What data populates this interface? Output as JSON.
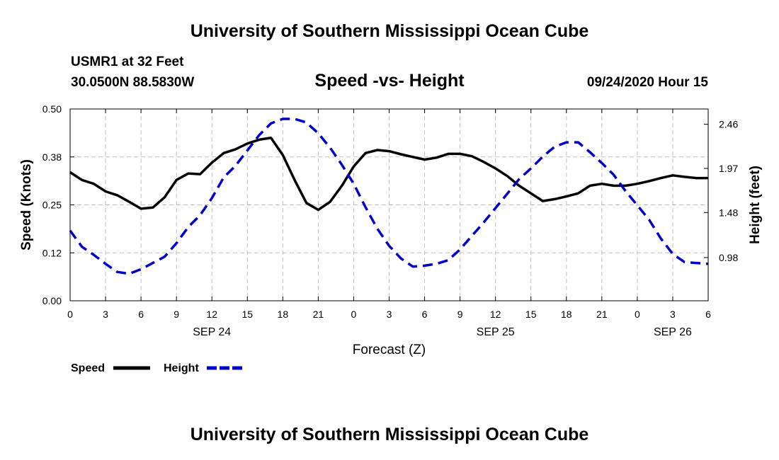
{
  "header": {
    "title": "University of Southern Mississippi Ocean Cube",
    "station": "USMR1 at 32 Feet",
    "coords": "30.0500N 88.5830W",
    "date": "09/24/2020 Hour 15"
  },
  "footer": {
    "title": "University of Southern Mississippi Ocean Cube"
  },
  "chart_data": {
    "type": "line",
    "title": "Speed -vs- Height",
    "xlabel": "Forecast (Z)",
    "ylabel": "Speed (Knots)",
    "y2label": "Height (feet)",
    "xlim": [
      0,
      54
    ],
    "ylim": [
      0,
      0.5
    ],
    "y2lim": [
      0.5,
      2.63
    ],
    "grid": true,
    "x_ticks": [
      0,
      3,
      6,
      9,
      12,
      15,
      18,
      21,
      24,
      27,
      30,
      33,
      36,
      39,
      42,
      45,
      48,
      51,
      54
    ],
    "x_tick_labels": [
      "0",
      "3",
      "6",
      "9",
      "12",
      "15",
      "18",
      "21",
      "0",
      "3",
      "6",
      "9",
      "12",
      "15",
      "18",
      "21",
      "0",
      "3",
      "6"
    ],
    "date_labels": [
      {
        "x": 12,
        "label": "SEP 24"
      },
      {
        "x": 36,
        "label": "SEP 25"
      },
      {
        "x": 51,
        "label": "SEP 26"
      }
    ],
    "y_ticks": [
      0,
      0.125,
      0.25,
      0.375,
      0.5
    ],
    "y_tick_labels": [
      "0.00",
      "0.12",
      "0.25",
      "0.38",
      "0.50"
    ],
    "y2_ticks": [
      0.98,
      1.48,
      1.97,
      2.46
    ],
    "y2_tick_labels": [
      "0.98",
      "1.48",
      "1.97",
      "2.46"
    ],
    "legend": {
      "position": "bottom-left",
      "items": [
        {
          "label": "Speed",
          "color": "#000000",
          "style": "solid"
        },
        {
          "label": "Height",
          "color": "#0000cc",
          "style": "dashed"
        }
      ]
    },
    "series": [
      {
        "name": "Speed",
        "axis": "left",
        "color": "#000000",
        "style": "solid",
        "x": [
          0,
          1,
          2,
          3,
          4,
          5,
          6,
          7,
          8,
          9,
          10,
          11,
          12,
          13,
          14,
          15,
          16,
          17,
          18,
          19,
          20,
          21,
          22,
          23,
          24,
          25,
          26,
          27,
          28,
          29,
          30,
          31,
          32,
          33,
          34,
          35,
          36,
          37,
          38,
          39,
          40,
          41,
          42,
          43,
          44,
          45,
          46,
          47,
          48,
          49,
          50,
          51,
          52,
          53,
          54
        ],
        "values": [
          0.335,
          0.315,
          0.305,
          0.285,
          0.275,
          0.258,
          0.24,
          0.243,
          0.27,
          0.315,
          0.332,
          0.33,
          0.36,
          0.385,
          0.395,
          0.41,
          0.42,
          0.425,
          0.38,
          0.315,
          0.255,
          0.237,
          0.258,
          0.3,
          0.35,
          0.385,
          0.393,
          0.39,
          0.382,
          0.375,
          0.368,
          0.373,
          0.383,
          0.383,
          0.377,
          0.362,
          0.345,
          0.325,
          0.3,
          0.28,
          0.26,
          0.265,
          0.272,
          0.28,
          0.3,
          0.305,
          0.3,
          0.3,
          0.305,
          0.312,
          0.32,
          0.327,
          0.323,
          0.32,
          0.32
        ]
      },
      {
        "name": "Height",
        "axis": "right",
        "color": "#0000cc",
        "style": "dashed",
        "x": [
          0,
          1,
          2,
          3,
          4,
          5,
          6,
          7,
          8,
          9,
          10,
          11,
          12,
          13,
          14,
          15,
          16,
          17,
          18,
          19,
          20,
          21,
          22,
          23,
          24,
          25,
          26,
          27,
          28,
          29,
          30,
          31,
          32,
          33,
          34,
          35,
          36,
          37,
          38,
          39,
          40,
          41,
          42,
          43,
          44,
          45,
          46,
          47,
          48,
          49,
          50,
          51,
          52,
          53,
          54
        ],
        "values": [
          1.28,
          1.1,
          1.01,
          0.91,
          0.82,
          0.8,
          0.85,
          0.92,
          0.99,
          1.14,
          1.32,
          1.45,
          1.64,
          1.87,
          2.0,
          2.17,
          2.34,
          2.47,
          2.52,
          2.52,
          2.48,
          2.36,
          2.2,
          2.01,
          1.8,
          1.54,
          1.3,
          1.11,
          0.97,
          0.88,
          0.89,
          0.91,
          0.95,
          1.07,
          1.22,
          1.37,
          1.53,
          1.69,
          1.85,
          1.97,
          2.1,
          2.21,
          2.26,
          2.26,
          2.15,
          2.03,
          1.9,
          1.72,
          1.56,
          1.4,
          1.19,
          1.02,
          0.93,
          0.92,
          0.91
        ]
      }
    ]
  }
}
